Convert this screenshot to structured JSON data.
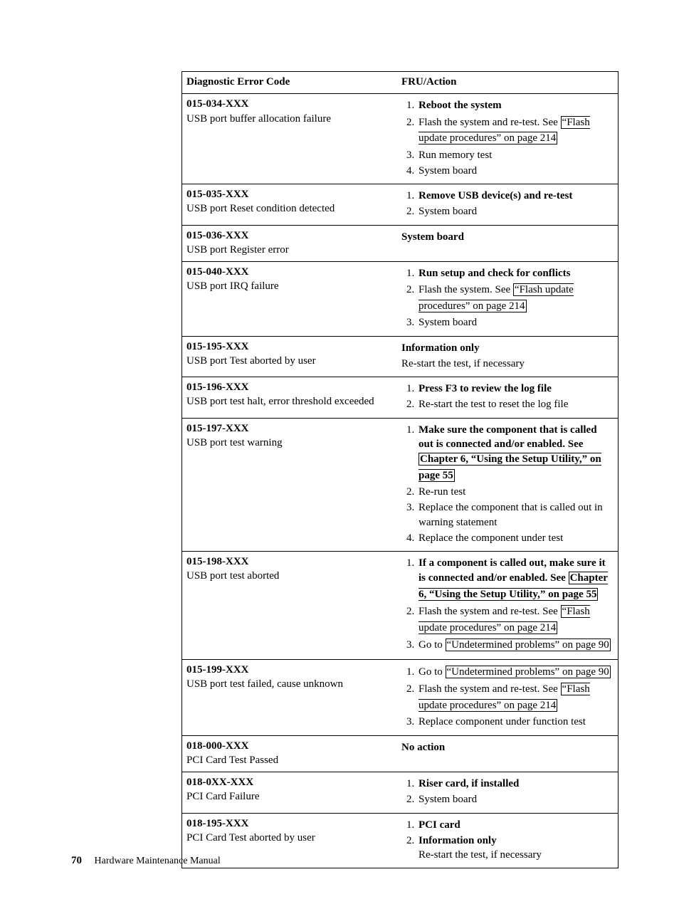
{
  "table": {
    "headers": {
      "col1": "Diagnostic Error Code",
      "col2": "FRU/Action"
    },
    "rows": [
      {
        "code": "015-034-XXX",
        "desc": "USB port buffer allocation failure",
        "action_type": "list",
        "items": [
          {
            "bold": true,
            "pre": "Reboot the system"
          },
          {
            "bold": false,
            "pre": "Flash the system and re-test. See ",
            "link": "“Flash update procedures” on page 214"
          },
          {
            "bold": false,
            "pre": "Run memory test"
          },
          {
            "bold": false,
            "pre": "System board"
          }
        ]
      },
      {
        "code": "015-035-XXX",
        "desc": "USB port Reset condition detected",
        "action_type": "list",
        "items": [
          {
            "bold": true,
            "pre": "Remove USB device(s) and re-test"
          },
          {
            "bold": false,
            "pre": "System board"
          }
        ]
      },
      {
        "code": "015-036-XXX",
        "desc": "USB port Register error",
        "action_type": "plain",
        "plain_bold": "System board"
      },
      {
        "code": "015-040-XXX",
        "desc": "USB port IRQ failure",
        "action_type": "list",
        "items": [
          {
            "bold": true,
            "pre": "Run setup and check for conflicts"
          },
          {
            "bold": false,
            "pre": "Flash the system. See ",
            "link": "“Flash update procedures” on page 214"
          },
          {
            "bold": false,
            "pre": "System board"
          }
        ]
      },
      {
        "code": "015-195-XXX",
        "desc": "USB port Test aborted by user",
        "action_type": "plain",
        "plain_bold": "Information only",
        "plain_rest": "Re-start the test, if necessary"
      },
      {
        "code": "015-196-XXX",
        "desc": "USB port test halt, error threshold exceeded",
        "action_type": "list",
        "items": [
          {
            "bold": true,
            "pre": "Press F3 to review the log file"
          },
          {
            "bold": false,
            "pre": "Re-start the test to reset the log file"
          }
        ]
      },
      {
        "code": "015-197-XXX",
        "desc": "USB port test warning",
        "action_type": "list",
        "items": [
          {
            "bold": true,
            "pre": "Make sure the component that is called out is connected and/or enabled. See ",
            "link": "Chapter 6, “Using the Setup Utility,” on page 55"
          },
          {
            "bold": false,
            "pre": "Re-run test"
          },
          {
            "bold": false,
            "pre": "Replace the component that is called out in warning statement"
          },
          {
            "bold": false,
            "pre": "Replace the component under test"
          }
        ]
      },
      {
        "code": "015-198-XXX",
        "desc": "USB port test aborted",
        "action_type": "list",
        "items": [
          {
            "bold": true,
            "pre": "If a component is called out, make sure it is connected and/or enabled. See ",
            "link": "Chapter 6, “Using the Setup Utility,” on page 55"
          },
          {
            "bold": false,
            "pre": "Flash the system and re-test. See ",
            "link": "“Flash update procedures” on page 214"
          },
          {
            "bold": false,
            "pre": "Go to ",
            "link": "“Undetermined problems” on page 90"
          }
        ]
      },
      {
        "code": "015-199-XXX",
        "desc": "USB port test failed, cause unknown",
        "action_type": "list",
        "items": [
          {
            "bold": false,
            "pre": "Go to ",
            "link": "“Undetermined problems” on page 90"
          },
          {
            "bold": false,
            "pre": "Flash the system and re-test. See ",
            "link": "“Flash update procedures” on page 214"
          },
          {
            "bold": false,
            "pre": "Replace component under function test"
          }
        ]
      },
      {
        "code": "018-000-XXX",
        "desc": "PCI Card Test Passed",
        "action_type": "plain",
        "plain_bold": "No action"
      },
      {
        "code": "018-0XX-XXX",
        "desc": "PCI Card Failure",
        "action_type": "list",
        "items": [
          {
            "bold": true,
            "pre": "Riser card, if installed"
          },
          {
            "bold": false,
            "pre": "System board"
          }
        ]
      },
      {
        "code": "018-195-XXX",
        "desc": "PCI Card Test aborted by user",
        "action_type": "list",
        "items": [
          {
            "bold": true,
            "pre": "PCI card"
          },
          {
            "bold": true,
            "pre": "Information only",
            "sub": "Re-start the test, if necessary"
          }
        ]
      }
    ]
  },
  "footer": {
    "page_number": "70",
    "book_title": "Hardware Maintenance Manual"
  }
}
